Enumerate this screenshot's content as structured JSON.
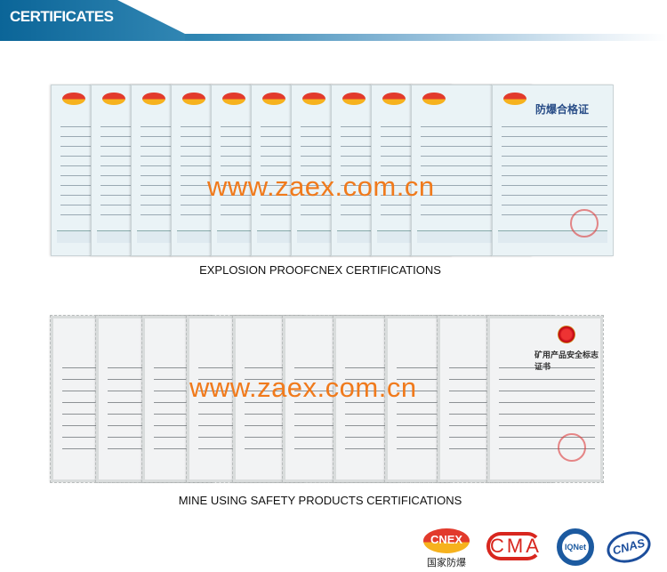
{
  "header": {
    "title": "CERTIFICATES"
  },
  "section1": {
    "caption": "EXPLOSION PROOFCNEX CERTIFICATIONS",
    "watermark": "www.zaex.com.cn",
    "top_card_title": "防爆合格证",
    "card_count": 11
  },
  "section2": {
    "caption": "MINE USING SAFETY PRODUCTS CERTIFICATIONS",
    "watermark": "www.zaex.com.cn",
    "top_card_title": "矿用产品安全标志证书",
    "card_count": 10
  },
  "logos": [
    {
      "name": "CNEX",
      "sub": "国家防爆"
    },
    {
      "name": "CMA"
    },
    {
      "name": "IQNet"
    },
    {
      "name": "CNAS"
    }
  ],
  "colors": {
    "header_blue": "#0b6598",
    "watermark_orange": "#f07a1c",
    "cnex_red": "#e23a2c"
  }
}
